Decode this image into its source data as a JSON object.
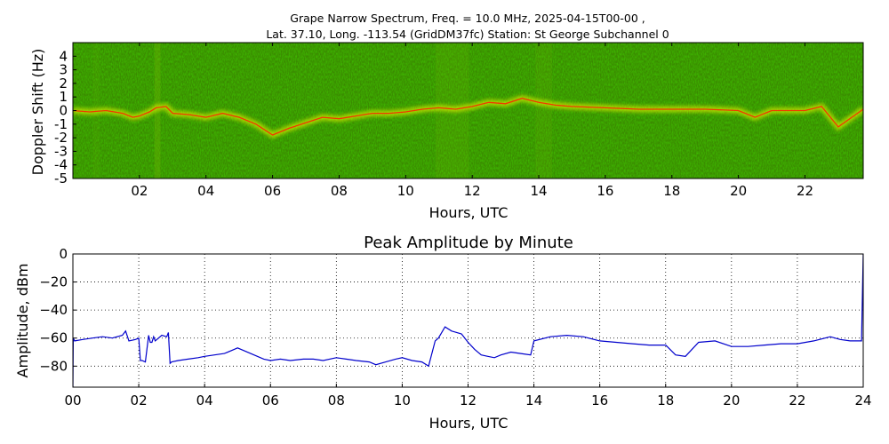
{
  "chart_data": [
    {
      "type": "heatmap",
      "title_line1": "Grape Narrow Spectrum, Freq. = 10.0 MHz, 2025-04-15T00-00 ,",
      "title_line2": "Lat.  37.10, Long. -113.54 (GridDM37fc) Station: St George Subchannel 0",
      "xlabel": "Hours, UTC",
      "ylabel": "Doppler Shift (Hz)",
      "xlim": [
        0,
        23.75
      ],
      "ylim": [
        -5,
        5
      ],
      "x_ticks": [
        2,
        4,
        6,
        8,
        10,
        12,
        14,
        16,
        18,
        20,
        22
      ],
      "x_tick_labels": [
        "02",
        "04",
        "06",
        "08",
        "10",
        "12",
        "14",
        "16",
        "18",
        "20",
        "22"
      ],
      "y_ticks": [
        4,
        3,
        2,
        1,
        0,
        -1,
        -2,
        -3,
        -4,
        -5
      ],
      "y_tick_labels": [
        "4",
        "3",
        "2",
        "1",
        "0",
        "-1",
        "-2",
        "-3",
        "-4",
        "-5"
      ],
      "colormap": [
        "#1a6a00",
        "#3a9a00",
        "#8fc400",
        "#ffff00",
        "#ff2000"
      ],
      "background_color": "#3a8a00",
      "trace": {
        "x": [
          0,
          0.5,
          1.0,
          1.5,
          1.8,
          2.0,
          2.3,
          2.5,
          2.8,
          3.0,
          3.5,
          4.0,
          4.5,
          5.0,
          5.5,
          6.0,
          6.5,
          7.0,
          7.5,
          8.0,
          8.5,
          9.0,
          9.5,
          10.0,
          10.5,
          11.0,
          11.5,
          12.0,
          12.5,
          13.0,
          13.5,
          14.0,
          14.5,
          15.0,
          16.0,
          17.0,
          18.0,
          19.0,
          20.0,
          20.5,
          21.0,
          22.0,
          22.5,
          23.0,
          23.75
        ],
        "y": [
          0,
          -0.1,
          0.0,
          -0.2,
          -0.5,
          -0.4,
          -0.1,
          0.2,
          0.3,
          -0.2,
          -0.3,
          -0.5,
          -0.2,
          -0.5,
          -1.0,
          -1.8,
          -1.3,
          -0.9,
          -0.5,
          -0.6,
          -0.4,
          -0.2,
          -0.2,
          -0.1,
          0.1,
          0.2,
          0.1,
          0.3,
          0.6,
          0.5,
          0.9,
          0.6,
          0.4,
          0.3,
          0.2,
          0.1,
          0.1,
          0.1,
          0.0,
          -0.5,
          0.0,
          0.0,
          0.3,
          -1.2,
          0.1
        ]
      }
    },
    {
      "type": "line",
      "title": "Peak Amplitude by Minute",
      "xlabel": "Hours, UTC",
      "ylabel": "Amplitude, dBm",
      "xlim": [
        0,
        24
      ],
      "ylim": [
        -95,
        0
      ],
      "x_ticks": [
        0,
        2,
        4,
        6,
        8,
        10,
        12,
        14,
        16,
        18,
        20,
        22,
        24
      ],
      "x_tick_labels": [
        "00",
        "02",
        "04",
        "06",
        "08",
        "10",
        "12",
        "14",
        "16",
        "18",
        "20",
        "22",
        "24"
      ],
      "y_ticks": [
        0,
        -20,
        -40,
        -60,
        -80
      ],
      "y_tick_labels": [
        "0",
        "−20",
        "−40",
        "−60",
        "−80"
      ],
      "grid": true,
      "line_color": "#0000cc",
      "x": [
        0,
        0.01,
        0.05,
        0.3,
        0.6,
        0.9,
        1.2,
        1.5,
        1.6,
        1.7,
        1.9,
        2.0,
        2.05,
        2.1,
        2.2,
        2.3,
        2.35,
        2.4,
        2.45,
        2.5,
        2.7,
        2.85,
        2.9,
        2.95,
        3.0,
        3.2,
        3.5,
        3.8,
        4.0,
        4.3,
        4.6,
        4.9,
        5.0,
        5.2,
        5.5,
        5.8,
        6.0,
        6.3,
        6.6,
        7.0,
        7.3,
        7.6,
        8.0,
        8.3,
        8.6,
        9.0,
        9.2,
        9.5,
        9.8,
        10.0,
        10.3,
        10.6,
        10.8,
        11.0,
        11.1,
        11.3,
        11.5,
        11.8,
        12.0,
        12.2,
        12.4,
        12.6,
        12.8,
        13.0,
        13.3,
        13.6,
        13.9,
        14.0,
        14.5,
        15.0,
        15.5,
        16.0,
        16.5,
        17.0,
        17.5,
        18.0,
        18.3,
        18.6,
        19.0,
        19.5,
        20.0,
        20.5,
        21.0,
        21.5,
        22.0,
        22.5,
        23.0,
        23.3,
        23.6,
        23.95,
        24.0
      ],
      "y": [
        -95,
        -60,
        -62,
        -61,
        -60,
        -59,
        -60,
        -58,
        -55,
        -62,
        -61,
        -60,
        -76,
        -76,
        -77,
        -58,
        -63,
        -63,
        -59,
        -62,
        -58,
        -59,
        -56,
        -78,
        -77,
        -76,
        -75,
        -74,
        -73,
        -72,
        -71,
        -68,
        -67,
        -69,
        -72,
        -75,
        -76,
        -75,
        -76,
        -75,
        -75,
        -76,
        -74,
        -75,
        -76,
        -77,
        -79,
        -77,
        -75,
        -74,
        -76,
        -77,
        -80,
        -62,
        -60,
        -52,
        -55,
        -57,
        -63,
        -68,
        -72,
        -73,
        -74,
        -72,
        -70,
        -71,
        -72,
        -62,
        -59,
        -58,
        -59,
        -62,
        -63,
        -64,
        -65,
        -65,
        -72,
        -73,
        -63,
        -62,
        -66,
        -66,
        -65,
        -64,
        -64,
        -62,
        -59,
        -61,
        -62,
        -62,
        0
      ]
    }
  ]
}
